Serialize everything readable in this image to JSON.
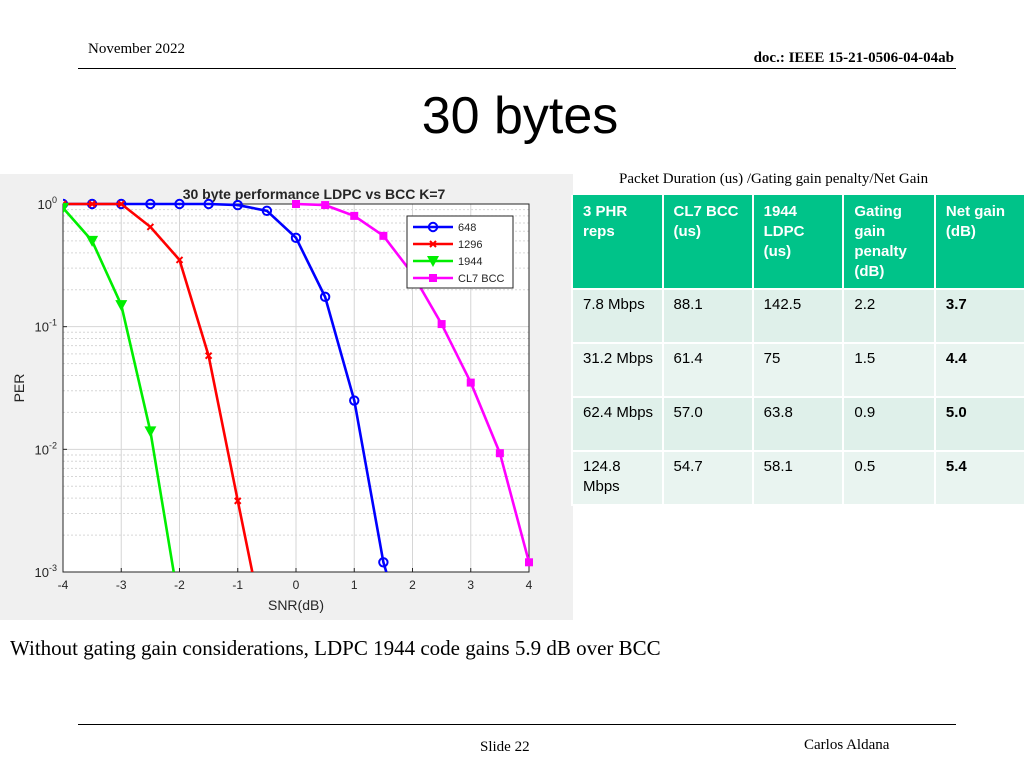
{
  "header": {
    "date": "November 2022",
    "doc": "doc.: IEEE 15-21-0506-04-04ab"
  },
  "title": "30 bytes",
  "table_caption": "Packet Duration (us) /Gating gain penalty/Net Gain",
  "table": {
    "headers": [
      "3 PHR reps",
      "CL7 BCC (us)",
      "1944 LDPC (us)",
      "Gating gain penalty (dB)",
      "Net gain (dB)"
    ],
    "rows": [
      [
        "7.8 Mbps",
        "88.1",
        "142.5",
        "2.2",
        "3.7"
      ],
      [
        "31.2 Mbps",
        "61.4",
        "75",
        "1.5",
        "4.4"
      ],
      [
        "62.4 Mbps",
        "57.0",
        "63.8",
        "0.9",
        "5.0"
      ],
      [
        "124.8 Mbps",
        "54.7",
        "58.1",
        "0.5",
        "5.4"
      ]
    ]
  },
  "chart_data": {
    "type": "line",
    "title": "30 byte performance LDPC vs BCC K=7",
    "xlabel": "SNR(dB)",
    "ylabel": "PER",
    "xlim": [
      -4,
      4
    ],
    "ylim": [
      0.001,
      1
    ],
    "yscale": "log",
    "grid": true,
    "legend_position": "top-right",
    "x_ticks": [
      "-4",
      "-3",
      "-2",
      "-1",
      "0",
      "1",
      "2",
      "3",
      "4"
    ],
    "y_ticks": [
      {
        "base": "10",
        "exp": "0"
      },
      {
        "base": "10",
        "exp": "-1"
      },
      {
        "base": "10",
        "exp": "-2"
      },
      {
        "base": "10",
        "exp": "-3"
      }
    ],
    "series": [
      {
        "name": "648",
        "color": "#0000ff",
        "marker": "circle",
        "points": [
          [
            -4,
            1
          ],
          [
            -3.5,
            1
          ],
          [
            -3,
            1
          ],
          [
            -2.5,
            1
          ],
          [
            -2,
            1
          ],
          [
            -1.5,
            1
          ],
          [
            -1,
            0.98
          ],
          [
            -0.5,
            0.88
          ],
          [
            0,
            0.53
          ],
          [
            0.5,
            0.175
          ],
          [
            1,
            0.025
          ],
          [
            1.5,
            0.0012
          ],
          [
            1.55,
            0.001
          ]
        ]
      },
      {
        "name": "1296",
        "color": "#ff0000",
        "marker": "x",
        "points": [
          [
            -4,
            1
          ],
          [
            -3.5,
            1
          ],
          [
            -3,
            1
          ],
          [
            -2.5,
            0.65
          ],
          [
            -2,
            0.35
          ],
          [
            -1.5,
            0.058
          ],
          [
            -1,
            0.0038
          ],
          [
            -0.75,
            0.001
          ]
        ]
      },
      {
        "name": "1944",
        "color": "#00ee00",
        "marker": "triangle-down",
        "points": [
          [
            -4,
            0.93
          ],
          [
            -3.5,
            0.5
          ],
          [
            -3,
            0.15
          ],
          [
            -2.5,
            0.014
          ],
          [
            -2.1,
            0.001
          ]
        ]
      },
      {
        "name": "CL7 BCC",
        "color": "#ff00ff",
        "marker": "square",
        "points": [
          [
            0,
            1
          ],
          [
            0.5,
            0.98
          ],
          [
            1,
            0.8
          ],
          [
            1.5,
            0.55
          ],
          [
            2,
            0.27
          ],
          [
            2.5,
            0.105
          ],
          [
            3,
            0.035
          ],
          [
            3.5,
            0.0093
          ],
          [
            4,
            0.0012
          ]
        ]
      }
    ]
  },
  "caption": "Without gating gain considerations, LDPC 1944 code gains 5.9 dB over BCC",
  "footer": {
    "slide": "Slide 22",
    "author": "Carlos Aldana"
  }
}
